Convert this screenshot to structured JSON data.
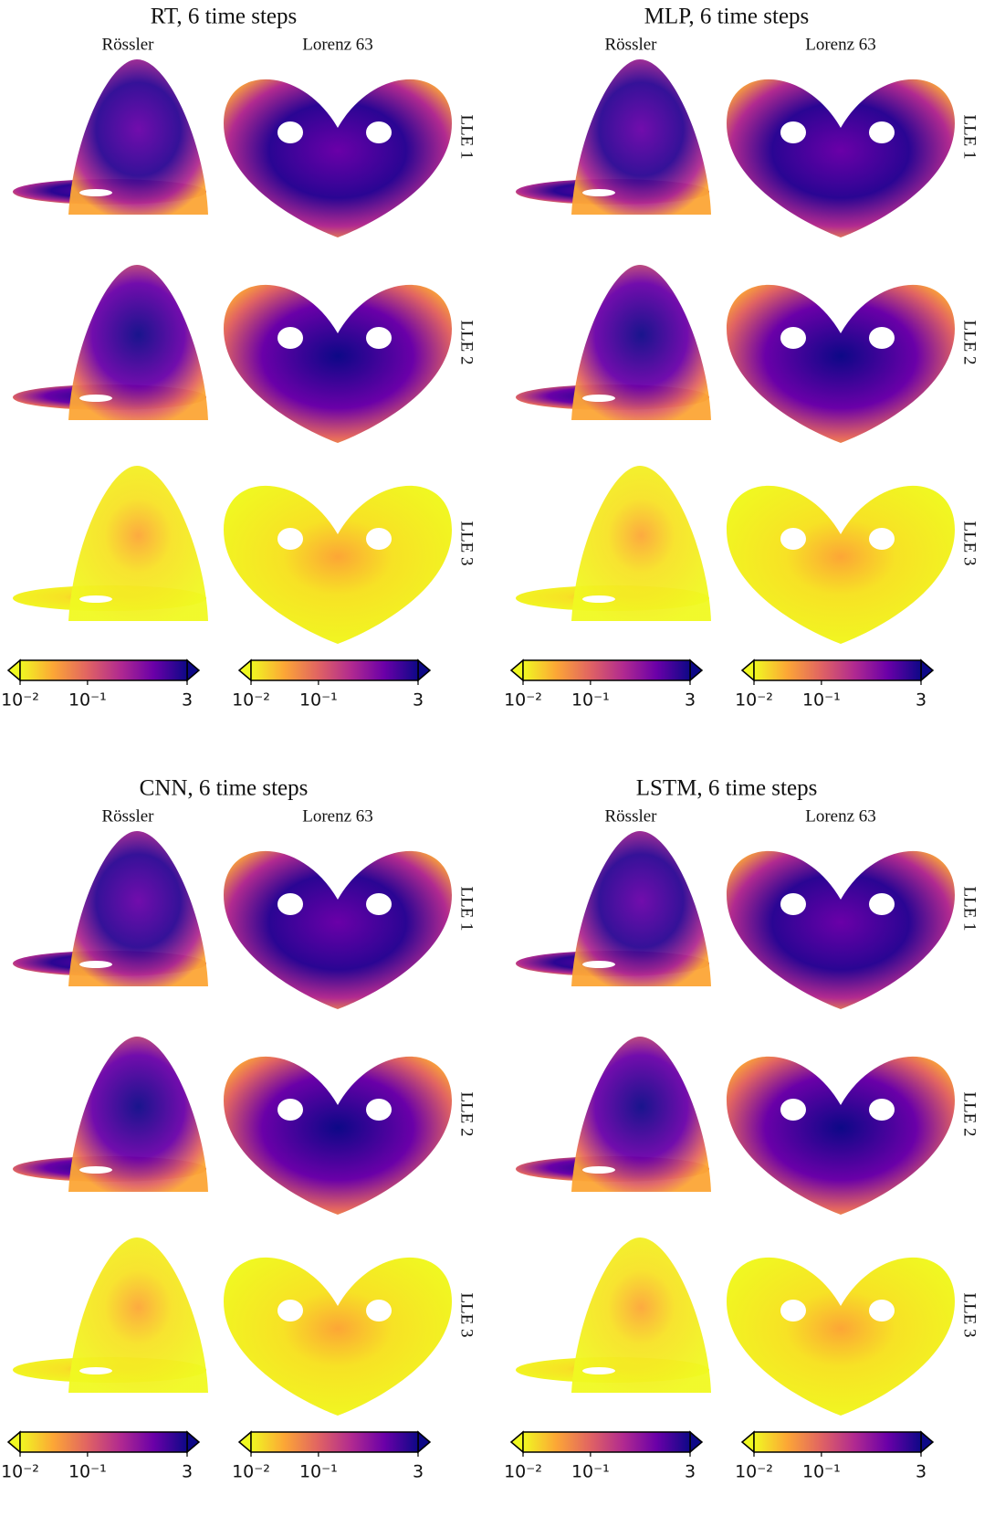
{
  "colormap": [
    "#f0f921",
    "#fca636",
    "#e16462",
    "#b12a90",
    "#6a00a8",
    "#0d0887"
  ],
  "panels": [
    {
      "title": "RT, 6 time steps",
      "columns": [
        "Rössler",
        "Lorenz 63"
      ],
      "rows": [
        "LLE 1",
        "LLE 2",
        "LLE 3"
      ],
      "colorbar": {
        "lim": [
          0.01,
          3
        ],
        "log": true,
        "ticks": [
          {
            "value": 0.01,
            "label": "10⁻²"
          },
          {
            "value": 0.1,
            "label": "10⁻¹"
          },
          3
        ]
      }
    },
    {
      "title": "MLP, 6 time steps",
      "columns": [
        "Rössler",
        "Lorenz 63"
      ],
      "rows": [
        "LLE 1",
        "LLE 2",
        "LLE 3"
      ],
      "colorbar": {
        "lim": [
          0.01,
          3
        ],
        "log": true,
        "ticks": [
          {
            "value": 0.01,
            "label": "10⁻²"
          },
          {
            "value": 0.1,
            "label": "10⁻¹"
          },
          3
        ]
      }
    },
    {
      "title": "CNN, 6 time steps",
      "columns": [
        "Rössler",
        "Lorenz 63"
      ],
      "rows": [
        "LLE 1",
        "LLE 2",
        "LLE 3"
      ],
      "colorbar": {
        "lim": [
          0.01,
          3
        ],
        "log": true,
        "ticks": [
          {
            "value": 0.01,
            "label": "10⁻²"
          },
          {
            "value": 0.1,
            "label": "10⁻¹"
          },
          3
        ]
      }
    },
    {
      "title": "LSTM, 6 time steps",
      "columns": [
        "Rössler",
        "Lorenz 63"
      ],
      "rows": [
        "LLE 1",
        "LLE 2",
        "LLE 3"
      ],
      "colorbar": {
        "lim": [
          0.01,
          3
        ],
        "log": true,
        "ticks": [
          {
            "value": 0.01,
            "label": "10⁻²"
          },
          {
            "value": 0.1,
            "label": "10⁻¹"
          },
          3
        ]
      }
    }
  ]
}
